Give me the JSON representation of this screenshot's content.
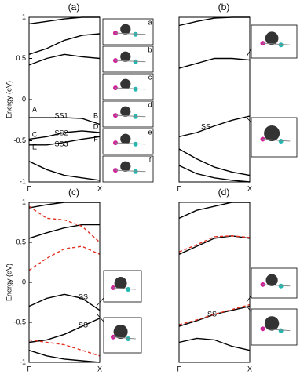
{
  "chart_data": [
    {
      "type": "line",
      "title": "(a)",
      "ylabel": "Energy (eV)",
      "x": [
        0,
        0.25,
        0.5,
        0.75,
        1
      ],
      "xlim": [
        0,
        1
      ],
      "xticks": [
        {
          "value": 0,
          "label": "Γ"
        },
        {
          "value": 1,
          "label": "X"
        }
      ],
      "ylim": [
        -1,
        1
      ],
      "yticks": [
        -1,
        -0.5,
        0,
        0.5,
        1
      ],
      "series": [
        {
          "color": "#000000",
          "values": [
            0.92,
            0.95,
            0.98,
            1.0,
            1.0
          ]
        },
        {
          "color": "#000000",
          "values": [
            0.55,
            0.62,
            0.72,
            0.78,
            0.8
          ]
        },
        {
          "color": "#000000",
          "values": [
            0.42,
            0.5,
            0.55,
            0.52,
            0.5
          ]
        },
        {
          "color": "#000000",
          "values": [
            -0.22,
            -0.22,
            -0.22,
            -0.23,
            -0.3
          ]
        },
        {
          "color": "#000000",
          "values": [
            -0.48,
            -0.45,
            -0.4,
            -0.38,
            -0.4
          ]
        },
        {
          "color": "#000000",
          "values": [
            -0.55,
            -0.55,
            -0.52,
            -0.48,
            -0.45
          ]
        },
        {
          "color": "#000000",
          "values": [
            -0.75,
            -0.85,
            -0.92,
            -0.95,
            -0.98
          ]
        }
      ],
      "annotations": [
        "A",
        "B",
        "C",
        "D",
        "E",
        "F",
        "SS1",
        "SS2",
        "SS3"
      ],
      "insets": [
        "a",
        "b",
        "c",
        "d",
        "e",
        "f"
      ]
    },
    {
      "type": "line",
      "title": "(b)",
      "x": [
        0,
        0.25,
        0.5,
        0.75,
        1
      ],
      "xlim": [
        0,
        1
      ],
      "xticks": [
        {
          "value": 0,
          "label": "Γ"
        },
        {
          "value": 1,
          "label": "X"
        }
      ],
      "ylim": [
        -1,
        1
      ],
      "series": [
        {
          "color": "#000000",
          "values": [
            0.9,
            0.95,
            0.99,
            1.0,
            1.0
          ]
        },
        {
          "color": "#000000",
          "values": [
            0.38,
            0.44,
            0.5,
            0.5,
            0.48
          ]
        },
        {
          "color": "#000000",
          "values": [
            -0.45,
            -0.4,
            -0.32,
            -0.25,
            -0.2
          ]
        },
        {
          "color": "#000000",
          "values": [
            -0.6,
            -0.72,
            -0.82,
            -0.88,
            -0.92
          ]
        },
        {
          "color": "#000000",
          "values": [
            -0.8,
            -0.9,
            -0.95,
            -0.98,
            -1.0
          ]
        }
      ],
      "annotations": [
        "SS"
      ]
    },
    {
      "type": "line",
      "title": "(c)",
      "ylabel": "Energy (eV)",
      "x": [
        0,
        0.25,
        0.5,
        0.75,
        1
      ],
      "xlim": [
        0,
        1
      ],
      "xticks": [
        {
          "value": 0,
          "label": "Γ"
        },
        {
          "value": 1,
          "label": "X"
        }
      ],
      "ylim": [
        -1,
        1
      ],
      "yticks": [
        -1,
        -0.5,
        0,
        0.5,
        1
      ],
      "series": [
        {
          "color": "#000000",
          "values": [
            0.93,
            0.97,
            1.0,
            1.0,
            1.0
          ]
        },
        {
          "color": "#000000",
          "values": [
            0.55,
            0.62,
            0.68,
            0.72,
            0.72
          ]
        },
        {
          "color": "#000000",
          "values": [
            -0.3,
            -0.2,
            -0.15,
            -0.2,
            -0.35
          ]
        },
        {
          "color": "#000000",
          "values": [
            -0.75,
            -0.72,
            -0.65,
            -0.55,
            -0.45
          ]
        },
        {
          "color": "#000000",
          "values": [
            -0.85,
            -0.92,
            -0.96,
            -0.98,
            -1.0
          ]
        },
        {
          "color": "#e03020",
          "dashed": true,
          "values": [
            0.95,
            0.8,
            0.78,
            0.7,
            0.5
          ]
        },
        {
          "color": "#e03020",
          "dashed": true,
          "values": [
            0.15,
            0.3,
            0.42,
            0.45,
            0.35
          ]
        },
        {
          "color": "#e03020",
          "dashed": true,
          "values": [
            -0.72,
            -0.75,
            -0.78,
            -0.85,
            -0.92
          ]
        }
      ],
      "annotations": [
        "SS",
        "SS"
      ]
    },
    {
      "type": "line",
      "title": "(d)",
      "x": [
        0,
        0.25,
        0.5,
        0.75,
        1
      ],
      "xlim": [
        0,
        1
      ],
      "xticks": [
        {
          "value": 0,
          "label": "Γ"
        },
        {
          "value": 1,
          "label": "X"
        }
      ],
      "ylim": [
        -1,
        1
      ],
      "series": [
        {
          "color": "#000000",
          "values": [
            0.8,
            0.9,
            0.95,
            1.0,
            1.0
          ]
        },
        {
          "color": "#000000",
          "values": [
            0.35,
            0.45,
            0.55,
            0.58,
            0.55
          ]
        },
        {
          "color": "#000000",
          "values": [
            -0.55,
            -0.48,
            -0.4,
            -0.35,
            -0.3
          ]
        },
        {
          "color": "#000000",
          "values": [
            -0.75,
            -0.7,
            -0.72,
            -0.8,
            -0.85
          ]
        },
        {
          "color": "#e03020",
          "dashed": true,
          "values": [
            0.38,
            0.47,
            0.57,
            0.58,
            0.56
          ]
        },
        {
          "color": "#e03020",
          "dashed": true,
          "values": [
            -0.53,
            -0.47,
            -0.4,
            -0.34,
            -0.28
          ]
        }
      ],
      "annotations": [
        "SS"
      ]
    }
  ]
}
